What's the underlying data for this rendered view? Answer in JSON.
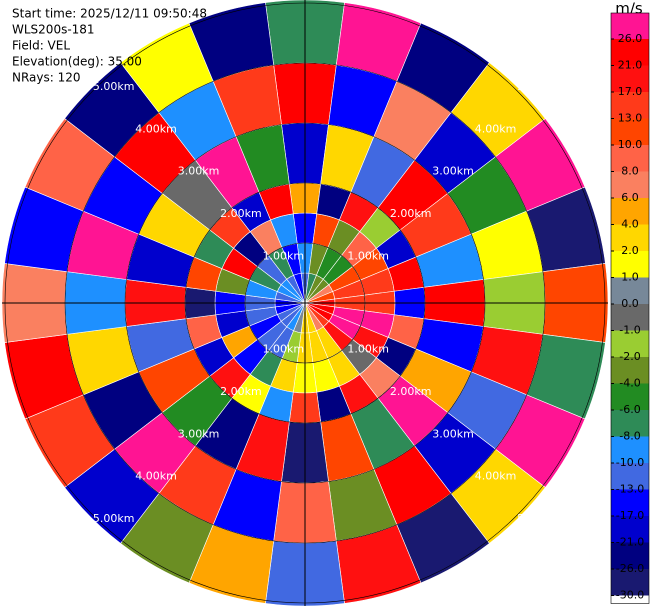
{
  "chart_data": {
    "type": "ppi",
    "info_lines": [
      "Start time: 2025/12/11 09:50:48",
      "WLS200s-181",
      "Field: VEL",
      "Elevation(deg): 35.00",
      "NRays: 120"
    ],
    "azimuth_deg": [
      0,
      15,
      30,
      45,
      60,
      75,
      90,
      105,
      120,
      135,
      150,
      165,
      180,
      195,
      210,
      225,
      240,
      255,
      270,
      285,
      300,
      315,
      330,
      345
    ],
    "range_bins_km": [
      0,
      0.5,
      1,
      1.5,
      2,
      3,
      4,
      5.05
    ],
    "values": [
      [
        -13,
        -10,
        -17,
        5,
        -21,
        24,
        -8
      ],
      [
        -8,
        -4,
        12,
        -26,
        3,
        -15,
        28
      ],
      [
        -4,
        -6,
        -3,
        19,
        -11,
        7,
        -24
      ],
      [
        -3,
        -5,
        9,
        -2,
        25,
        -18,
        2
      ],
      [
        6,
        10,
        11,
        -20,
        15,
        -6,
        27
      ],
      [
        12,
        14,
        13,
        22,
        -9,
        1,
        -28
      ],
      [
        18,
        16,
        15,
        -14,
        23,
        -2,
        11
      ],
      [
        24,
        27,
        28,
        9,
        -16,
        20,
        -7
      ],
      [
        22,
        27,
        19,
        -24,
        4,
        -12,
        26
      ],
      [
        15,
        20,
        -1,
        6,
        28,
        -19,
        3
      ],
      [
        7,
        3,
        2,
        17,
        -8,
        24,
        -27
      ],
      [
        3,
        2,
        1.5,
        -22,
        12,
        -3,
        18
      ],
      [
        2,
        3,
        1.5,
        14,
        -27,
        9,
        -12
      ],
      [
        0.5,
        -1.5,
        3,
        -9,
        20,
        -15,
        5
      ],
      [
        -10,
        -12,
        -7,
        1,
        -23,
        16,
        -4
      ],
      [
        -12,
        -11,
        -16,
        18,
        -5,
        27,
        -20
      ],
      [
        -11,
        -14,
        5,
        -18,
        10,
        -25,
        14
      ],
      [
        -14,
        -13,
        -20,
        8,
        -12,
        2,
        23
      ],
      [
        -15,
        -12,
        -17,
        -28,
        19,
        -9,
        6
      ],
      [
        -12,
        -9,
        -3,
        12,
        -20,
        26,
        -14
      ],
      [
        -10,
        -8,
        22,
        -7,
        3,
        -17,
        9
      ],
      [
        -9,
        -13,
        -24,
        16,
        -1,
        21,
        -25
      ],
      [
        -11,
        -7,
        6,
        -19,
        27,
        -10,
        1
      ],
      [
        -14,
        -16,
        -9,
        24,
        -6,
        13,
        -22
      ]
    ],
    "rlim": [
      0,
      5.05
    ],
    "rticks": [
      {
        "value": 1,
        "label": "1.00km"
      },
      {
        "value": 2,
        "label": "2.00km"
      },
      {
        "value": 3,
        "label": "3.00km"
      },
      {
        "value": 4,
        "label": "4.00km"
      },
      {
        "value": 5,
        "label": "5.00km"
      }
    ],
    "colorbar": {
      "label": "m/s",
      "ticks": [
        {
          "value": 26,
          "label": "26.0"
        },
        {
          "value": 21,
          "label": "21.0"
        },
        {
          "value": 17,
          "label": "17.0"
        },
        {
          "value": 13,
          "label": "13.0"
        },
        {
          "value": 10,
          "label": "10.0"
        },
        {
          "value": 8,
          "label": "8.0"
        },
        {
          "value": 6,
          "label": "6.0"
        },
        {
          "value": 4,
          "label": "4.0"
        },
        {
          "value": 2,
          "label": "2.0"
        },
        {
          "value": 1,
          "label": "1.0"
        },
        {
          "value": 0,
          "label": "0.0"
        },
        {
          "value": -1,
          "label": "-1.0"
        },
        {
          "value": -2,
          "label": "-2.0"
        },
        {
          "value": -4,
          "label": "-4.0"
        },
        {
          "value": -6,
          "label": "-6.0"
        },
        {
          "value": -8,
          "label": "-8.0"
        },
        {
          "value": -10,
          "label": "-10.0"
        },
        {
          "value": -13,
          "label": "-13.0"
        },
        {
          "value": -17,
          "label": "-17.0"
        },
        {
          "value": -21,
          "label": "-21.0"
        },
        {
          "value": -26,
          "label": "-26.0"
        },
        {
          "value": -30,
          "label": "-30.0"
        }
      ],
      "colors": [
        "#ff1493",
        "#ff0000",
        "#ff1010",
        "#ff3a1a",
        "#ff4500",
        "#ff6347",
        "#fa8060",
        "#ffa500",
        "#ffd700",
        "#ffff00",
        "#778899",
        "#696969",
        "#9acd32",
        "#6b8e23",
        "#228b22",
        "#2e8b57",
        "#1e90ff",
        "#4169e1",
        "#0000ff",
        "#0000cd",
        "#000080",
        "#191970"
      ]
    }
  }
}
